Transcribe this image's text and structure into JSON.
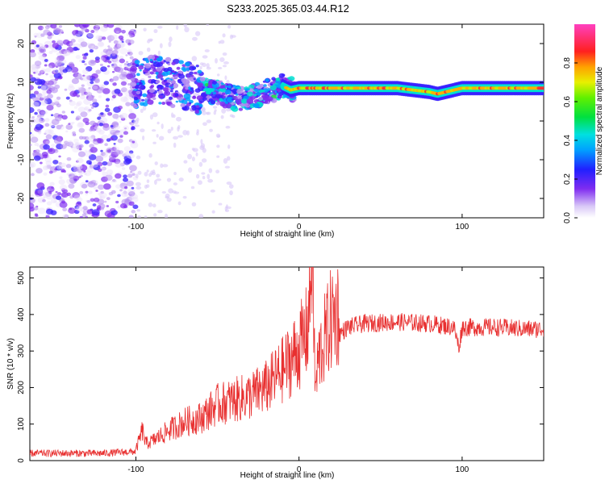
{
  "title": "S233.2025.365.03.44.R12",
  "chart_data": [
    {
      "type": "heatmap",
      "xlabel": "Height of straight line (km)",
      "ylabel": "Frequency (Hz)",
      "xlim": [
        -165,
        150
      ],
      "ylim": [
        -25,
        25
      ],
      "xticks": [
        -100,
        0,
        100
      ],
      "yticks": [
        -20,
        -10,
        0,
        10,
        20
      ],
      "colorbar": {
        "label": "Normalized spectral amplitude",
        "range": [
          0,
          1
        ],
        "ticks": [
          "0.0",
          "0.2",
          "0.4",
          "0.6",
          "0.8"
        ]
      },
      "ridge": {
        "description_points_x": [
          -100,
          -90,
          -80,
          -70,
          -60,
          -50,
          -40,
          -30,
          -20,
          -10,
          -5,
          0,
          10,
          20,
          40,
          60,
          70,
          80,
          85,
          90,
          100,
          110,
          120,
          140,
          150
        ],
        "frequency_hz": [
          9.5,
          11,
          10,
          9,
          8,
          7.5,
          6,
          6,
          7.5,
          9,
          8,
          8.5,
          8.5,
          8.5,
          8.5,
          8.5,
          8,
          7.5,
          7,
          7.5,
          8.5,
          8.5,
          8.5,
          8.5,
          8.5
        ]
      }
    },
    {
      "type": "line",
      "xlabel": "Height of straight line (km)",
      "ylabel": "SNR (10 * v/v)",
      "xlim": [
        -165,
        150
      ],
      "ylim": [
        0,
        530
      ],
      "xticks": [
        -100,
        0,
        100
      ],
      "yticks": [
        0,
        100,
        200,
        300,
        400,
        500
      ],
      "color": "#e83030",
      "series": [
        {
          "x": [
            -165,
            -140,
            -120,
            -100,
            -96,
            -94,
            -90,
            -80,
            -70,
            -60,
            -50,
            -40,
            -30,
            -20,
            -10,
            0,
            5,
            7,
            8,
            9,
            10,
            12,
            20,
            30,
            40,
            60,
            80,
            95,
            98,
            100,
            120,
            140,
            150
          ],
          "y": [
            20,
            20,
            20,
            25,
            70,
            40,
            45,
            70,
            90,
            100,
            130,
            140,
            150,
            170,
            210,
            260,
            300,
            400,
            500,
            330,
            160,
            240,
            330,
            365,
            375,
            380,
            375,
            365,
            310,
            365,
            365,
            360,
            360
          ]
        }
      ]
    }
  ]
}
